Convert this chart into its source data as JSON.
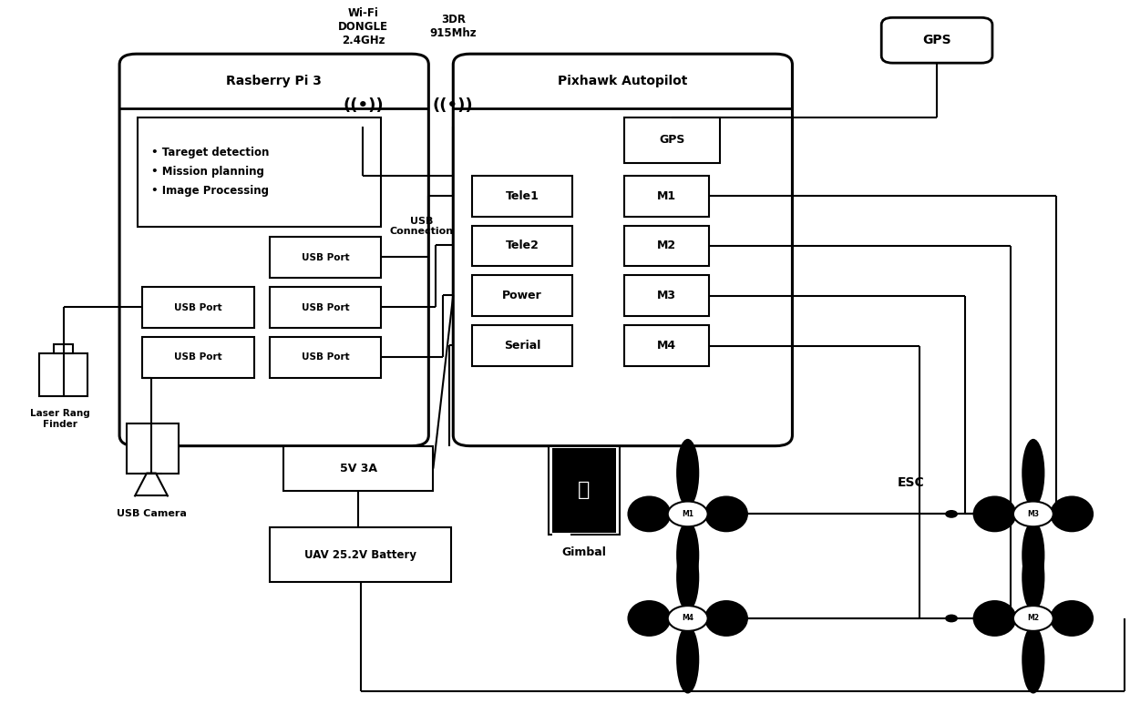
{
  "bg": "#ffffff",
  "lc": "#000000",
  "figsize": [
    12.4,
    7.84
  ],
  "dpi": 100,
  "rpi_label": "Rasberry Pi 3",
  "pixhawk_label": "Pixhawk Autopilot",
  "wifi_label": "Wi-Fi\nDONGLE\n2.4GHz",
  "radio_label": "3DR\n915Mhz",
  "usb_conn_label": "USB\nConnection",
  "gps_ext_label": "GPS",
  "laser_label": "Laser Rang\nFinder",
  "camera_label": "USB Camera",
  "v5_label": "5V 3A",
  "battery_label": "UAV 25.2V Battery",
  "gimbal_label": "Gimbal",
  "esc_label": "ESC",
  "tasks_text": "• Tareget detection\n• Mission planning\n• Image Processing"
}
